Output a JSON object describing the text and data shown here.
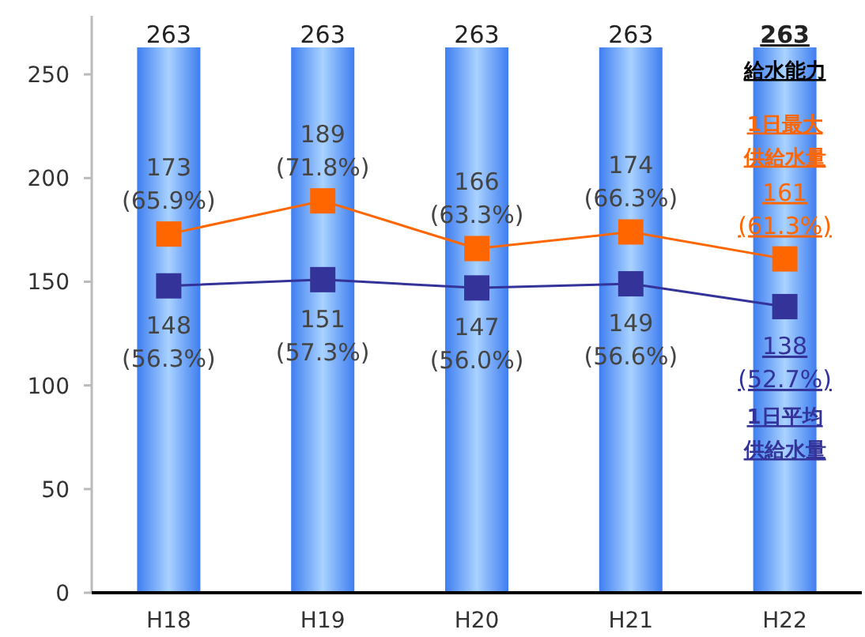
{
  "chart_data": {
    "type": "bar",
    "categories": [
      "H18",
      "H19",
      "H20",
      "H21",
      "H22"
    ],
    "ylim": [
      0,
      263
    ],
    "yticks": [
      0,
      50,
      100,
      150,
      200,
      250
    ],
    "grid": false,
    "marker": "square",
    "series": [
      {
        "name": "給水能力",
        "color": "#3f7ef0",
        "values": [
          263,
          263,
          263,
          263,
          263
        ],
        "value_labels": [
          "263",
          "263",
          "263",
          "263",
          "263"
        ]
      },
      {
        "name": "1日最大供給水量",
        "type": "line",
        "color": "#ff6600",
        "values": [
          173,
          189,
          166,
          174,
          161
        ],
        "value_labels": [
          "173\n(65.9%)",
          "189\n(71.8%)",
          "166\n(63.3%)",
          "174\n(66.3%)",
          "161\n(61.3%)"
        ]
      },
      {
        "name": "1日平均供給水量",
        "type": "line",
        "color": "#333399",
        "values": [
          148,
          151,
          147,
          149,
          138
        ],
        "value_labels": [
          "148\n(56.3%)",
          "151\n(57.3%)",
          "147\n(56.0%)",
          "149\n(56.6%)",
          "138\n(52.7%)"
        ]
      }
    ]
  }
}
